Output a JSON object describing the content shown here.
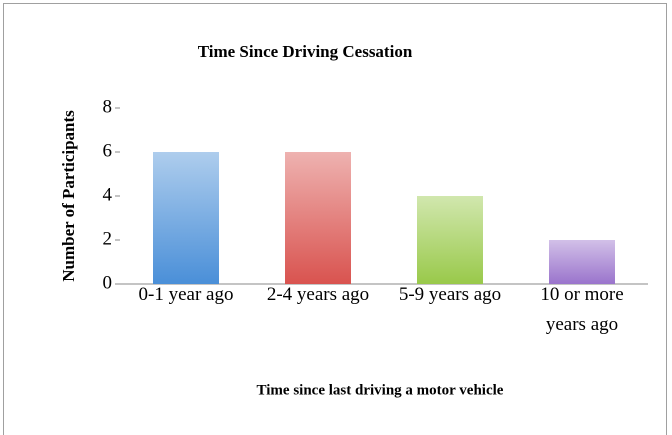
{
  "chart_data": {
    "type": "bar",
    "title": "Time Since Driving Cessation",
    "x_label": "Time since last driving a motor vehicle",
    "y_label": "Number of Participants",
    "categories": [
      "0-1 year ago",
      "2-4 years ago",
      "5-9 years ago",
      "10 or more years ago"
    ],
    "values": [
      6,
      6,
      4,
      2
    ],
    "colors": [
      "#4a8fd8",
      "#d9534f",
      "#99c94a",
      "#9a74cc"
    ],
    "ylim": [
      0,
      8
    ],
    "yticks": [
      0,
      2,
      4,
      6,
      8
    ],
    "grid": false
  }
}
